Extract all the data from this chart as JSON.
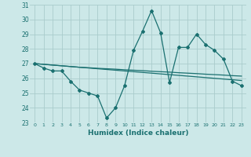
{
  "xlabel": "Humidex (Indice chaleur)",
  "x": [
    0,
    1,
    2,
    3,
    4,
    5,
    6,
    7,
    8,
    9,
    10,
    11,
    12,
    13,
    14,
    15,
    16,
    17,
    18,
    19,
    20,
    21,
    22,
    23
  ],
  "line1": [
    27.0,
    26.7,
    26.5,
    26.5,
    25.8,
    25.2,
    25.0,
    24.8,
    23.3,
    24.0,
    25.5,
    27.9,
    29.2,
    30.6,
    29.1,
    25.7,
    28.1,
    28.1,
    29.0,
    28.3,
    27.9,
    27.3,
    25.8,
    25.5
  ],
  "line2": [
    27.0,
    26.95,
    26.9,
    26.85,
    26.8,
    26.75,
    26.7,
    26.65,
    26.6,
    26.55,
    26.5,
    26.45,
    26.4,
    26.35,
    26.3,
    26.25,
    26.2,
    26.15,
    26.1,
    26.05,
    26.0,
    25.95,
    25.9,
    25.85
  ],
  "line3": [
    27.0,
    26.95,
    26.9,
    26.85,
    26.8,
    26.75,
    26.72,
    26.68,
    26.65,
    26.62,
    26.58,
    26.55,
    26.52,
    26.48,
    26.45,
    26.42,
    26.38,
    26.35,
    26.32,
    26.28,
    26.25,
    26.22,
    26.18,
    26.15
  ],
  "bg_color": "#cce8e8",
  "line_color": "#1a7070",
  "grid_color": "#aacccc",
  "ylim": [
    23,
    31
  ],
  "yticks": [
    23,
    24,
    25,
    26,
    27,
    28,
    29,
    30,
    31
  ]
}
